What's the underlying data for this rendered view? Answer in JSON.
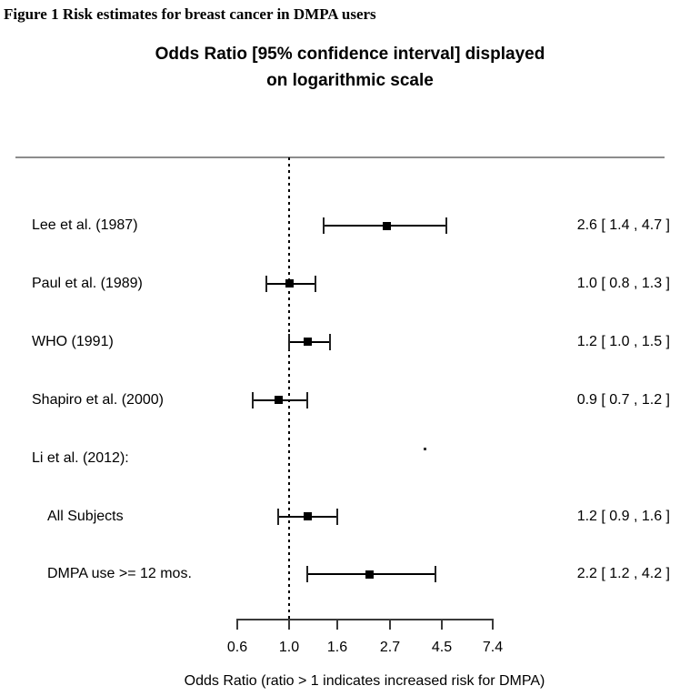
{
  "figure_title": "Figure 1 Risk estimates for breast cancer in DMPA users",
  "chart_title": {
    "line1": "Odds Ratio [95% confidence interval] displayed",
    "line2": "on logarithmic scale"
  },
  "colors": {
    "text": "#000000",
    "separator": "#8c8c8c",
    "bar": "#000000",
    "background": "#ffffff"
  },
  "chart_data": {
    "type": "forest",
    "scale": "log",
    "title": "Odds Ratio [95% confidence interval] displayed on logarithmic scale",
    "xlabel": "Odds Ratio (ratio > 1 indicates increased risk for DMPA)",
    "xlim": [
      0.6,
      7.4
    ],
    "reference_line": 1.0,
    "x_ticks": [
      0.6,
      1.0,
      1.6,
      2.7,
      4.5,
      7.4
    ],
    "x_tick_labels": [
      "0.6",
      "1.0",
      "1.6",
      "2.7",
      "4.5",
      "7.4"
    ],
    "rows": [
      {
        "label": "Lee et al. (1987)",
        "indent": false,
        "or": 2.6,
        "ci_low": 1.4,
        "ci_high": 4.7,
        "display": "2.6 [ 1.4 , 4.7 ]"
      },
      {
        "label": "Paul et al. (1989)",
        "indent": false,
        "or": 1.0,
        "ci_low": 0.8,
        "ci_high": 1.3,
        "display": "1.0 [ 0.8 , 1.3 ]"
      },
      {
        "label": "WHO (1991)",
        "indent": false,
        "or": 1.2,
        "ci_low": 1.0,
        "ci_high": 1.5,
        "display": "1.2 [ 1.0 , 1.5 ]"
      },
      {
        "label": "Shapiro et al. (2000)",
        "indent": false,
        "or": 0.9,
        "ci_low": 0.7,
        "ci_high": 1.2,
        "display": "0.9 [ 0.7 , 1.2 ]"
      },
      {
        "label": "Li et al. (2012):",
        "indent": false,
        "or": null,
        "ci_low": null,
        "ci_high": null,
        "display": ""
      },
      {
        "label": "All Subjects",
        "indent": true,
        "or": 1.2,
        "ci_low": 0.9,
        "ci_high": 1.6,
        "display": "1.2 [ 0.9 , 1.6 ]"
      },
      {
        "label": "DMPA use >= 12 mos.",
        "indent": true,
        "or": 2.2,
        "ci_low": 1.2,
        "ci_high": 4.2,
        "display": "2.2 [ 1.2 , 4.2 ]"
      }
    ]
  }
}
